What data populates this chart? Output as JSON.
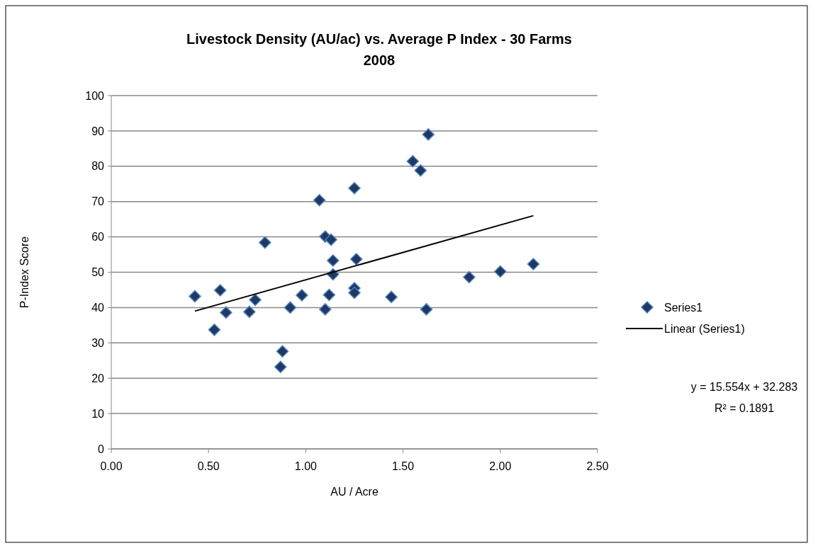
{
  "chart_data": {
    "type": "scatter",
    "title": "Livestock Density (AU/ac)  vs. Average P Index - 30 Farms\n2008",
    "xlabel": "AU / Acre",
    "ylabel": "P-Index Score",
    "xlim": [
      0,
      2.5
    ],
    "xticks": [
      {
        "value": 0,
        "label": "0.00"
      },
      {
        "value": 0.5,
        "label": "0.50"
      },
      {
        "value": 1,
        "label": "1.00"
      },
      {
        "value": 1.5,
        "label": "1.50"
      },
      {
        "value": 2,
        "label": "2.00"
      },
      {
        "value": 2.5,
        "label": "2.50"
      }
    ],
    "ylim": [
      0,
      100
    ],
    "yticks": [
      0,
      10,
      20,
      30,
      40,
      50,
      60,
      70,
      80,
      90,
      100
    ],
    "grid": "y",
    "legend": "right",
    "marker": "diamond",
    "series": [
      {
        "name": "Series1",
        "color": "#1f3864",
        "x": [
          0.43,
          0.53,
          0.56,
          0.59,
          0.71,
          0.74,
          0.79,
          0.87,
          0.88,
          0.92,
          0.98,
          1.07,
          1.1,
          1.1,
          1.12,
          1.13,
          1.14,
          1.14,
          1.25,
          1.25,
          1.25,
          1.26,
          1.44,
          1.55,
          1.59,
          1.62,
          1.63,
          1.84,
          2.0,
          2.17
        ],
        "values": [
          43.2,
          33.7,
          44.9,
          38.6,
          38.8,
          42.2,
          58.4,
          23.2,
          27.6,
          40.0,
          43.5,
          70.4,
          60.1,
          39.5,
          43.6,
          59.2,
          53.3,
          49.4,
          73.8,
          45.5,
          44.2,
          53.7,
          43.0,
          81.4,
          78.8,
          39.5,
          89.0,
          48.6,
          50.2,
          52.3
        ]
      },
      {
        "name": "Linear (Series1)",
        "type": "line",
        "color": "#000000",
        "marker": "none",
        "line_style": "solid",
        "x": [
          0.43,
          2.17
        ],
        "values": [
          39.0,
          66.0
        ]
      }
    ],
    "annotations": [
      "y = 15.554x + 32.283",
      "R² = 0.1891"
    ]
  }
}
